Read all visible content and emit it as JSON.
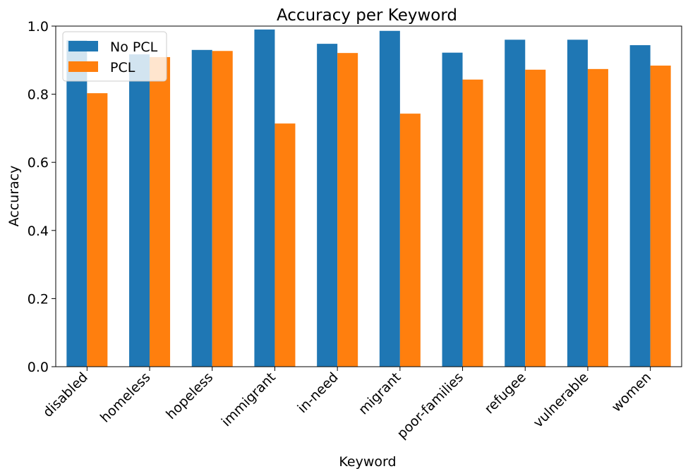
{
  "chart_data": {
    "type": "bar",
    "title": "Accuracy per Keyword",
    "xlabel": "Keyword",
    "ylabel": "Accuracy",
    "ylim": [
      0,
      1.0
    ],
    "yticks": [
      "0.0",
      "0.2",
      "0.4",
      "0.6",
      "0.8",
      "1.0"
    ],
    "categories": [
      "disabled",
      "homeless",
      "hopeless",
      "immigrant",
      "in-need",
      "migrant",
      "poor-families",
      "refugee",
      "vulnerable",
      "women"
    ],
    "series": [
      {
        "name": "No PCL",
        "color": "#1f77b4",
        "values": [
          0.958,
          0.917,
          0.93,
          0.99,
          0.948,
          0.986,
          0.922,
          0.96,
          0.96,
          0.944
        ]
      },
      {
        "name": "PCL",
        "color": "#ff7f0e",
        "values": [
          0.803,
          0.909,
          0.927,
          0.714,
          0.921,
          0.743,
          0.843,
          0.872,
          0.874,
          0.884
        ]
      }
    ],
    "legend": "top-left",
    "grid": false
  }
}
